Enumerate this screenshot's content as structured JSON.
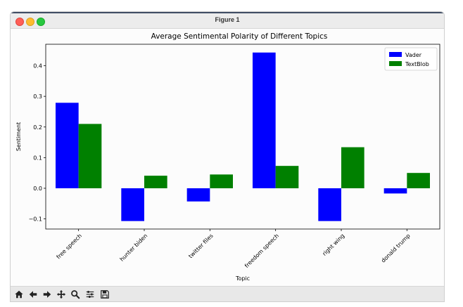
{
  "window": {
    "title": "Figure 1"
  },
  "toolbar": {
    "buttons": [
      {
        "name": "home",
        "icon": "home-icon"
      },
      {
        "name": "back",
        "icon": "arrow-left-icon"
      },
      {
        "name": "forward",
        "icon": "arrow-right-icon"
      },
      {
        "name": "pan",
        "icon": "move-icon"
      },
      {
        "name": "zoom",
        "icon": "zoom-icon"
      },
      {
        "name": "configure",
        "icon": "sliders-icon"
      },
      {
        "name": "save",
        "icon": "save-icon"
      }
    ]
  },
  "chart_data": {
    "type": "bar",
    "title": "Average Sentimental Polarity of Different Topics",
    "xlabel": "Topic",
    "ylabel": "Sentiment",
    "categories": [
      "free speech",
      "hunter biden",
      "twitter files",
      "freedom speech",
      "right wing",
      "donald trump"
    ],
    "series": [
      {
        "name": "Vader",
        "color": "#0000ff",
        "values": [
          0.279,
          -0.107,
          -0.043,
          0.443,
          -0.107,
          -0.017
        ]
      },
      {
        "name": "TextBlob",
        "color": "#008000",
        "values": [
          0.21,
          0.041,
          0.045,
          0.073,
          0.134,
          0.05
        ]
      }
    ],
    "ylim": [
      -0.133,
      0.47
    ],
    "yticks": [
      -0.1,
      0.0,
      0.1,
      0.2,
      0.3,
      0.4
    ],
    "ytick_labels": [
      "−0.1",
      "0.0",
      "0.1",
      "0.2",
      "0.3",
      "0.4"
    ],
    "legend": "top-right",
    "grid": false
  }
}
